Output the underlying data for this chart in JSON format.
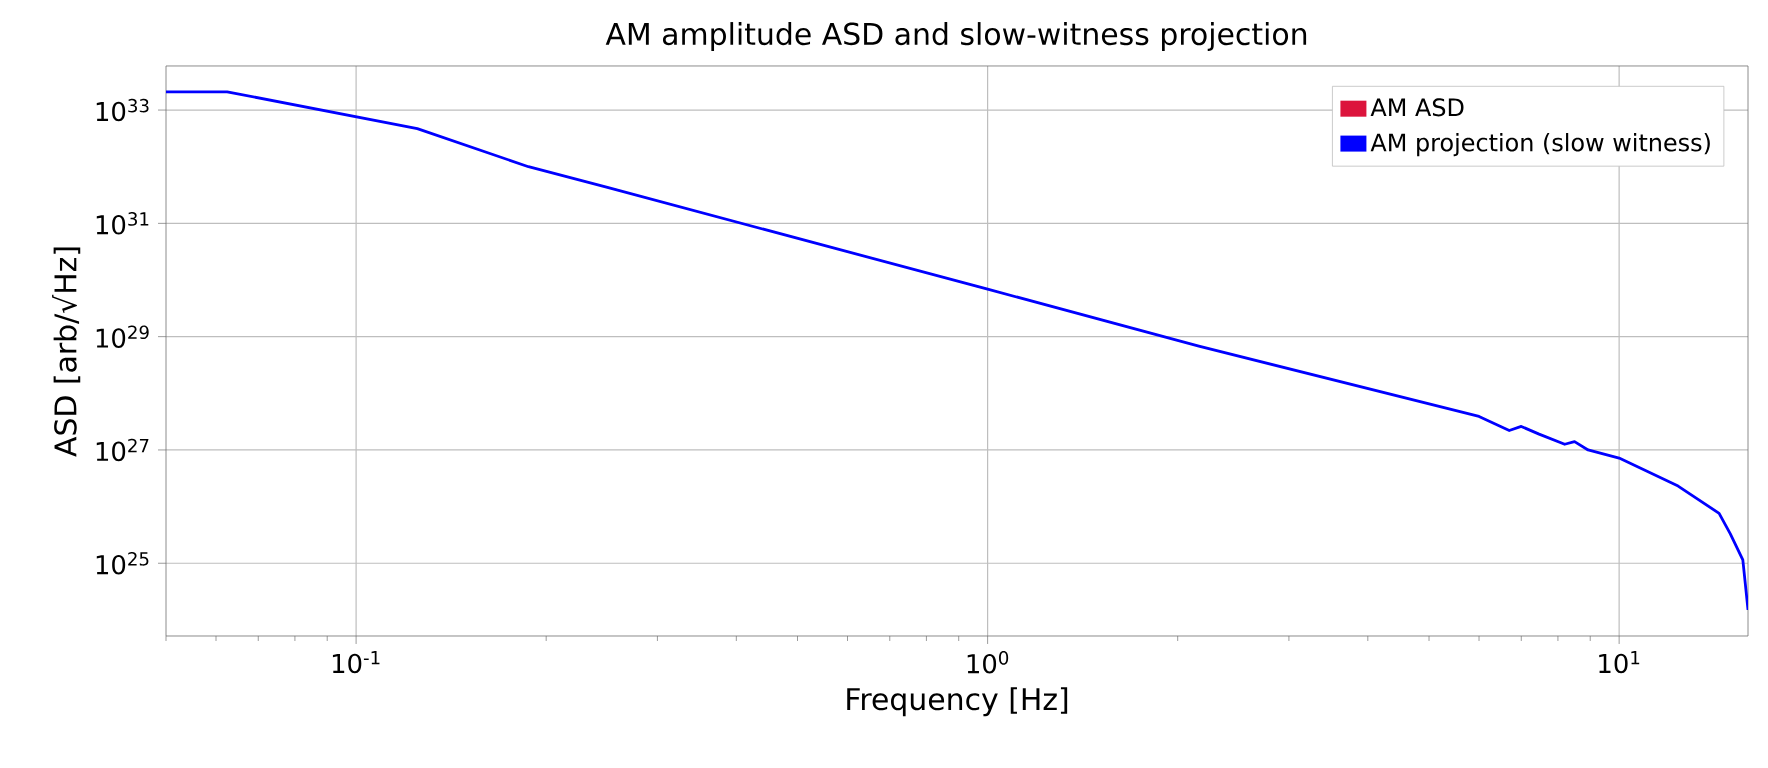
{
  "chart_data": {
    "type": "line",
    "title": "AM amplitude ASD and slow-witness projection",
    "xlabel": "Frequency [Hz]",
    "ylabel": "ASD [arb/√Hz]",
    "x": [
      0.05,
      0.0625,
      0.125,
      0.1875,
      0.25,
      1,
      2.16,
      6.0,
      6.7,
      7.0,
      7.47,
      8.2,
      8.5,
      8.93,
      10,
      12.4,
      14.4,
      15.0,
      15.7,
      16.0
    ],
    "series": [
      {
        "name": "AM ASD",
        "color": "#dc143c",
        "values": [
          null,
          null,
          null,
          null,
          null,
          null,
          null,
          null,
          null,
          null,
          null,
          null,
          null,
          null,
          null,
          null,
          null,
          null,
          null,
          null
        ]
      },
      {
        "name": "AM projection (slow witness)",
        "color": "#0000ff",
        "values": [
          2.1e+33,
          2.1e+33,
          4.7e+32,
          1e+32,
          4.3e+31,
          6.9e+29,
          6.8e+28,
          3.9e+27,
          2.2e+27,
          2.6e+27,
          1.9e+27,
          1.26e+27,
          1.4e+27,
          1e+27,
          7.2e+26,
          2.3e+26,
          7.6e+25,
          3.3e+25,
          1.15e+25,
          1.5e+24
        ]
      }
    ],
    "log": "xy",
    "xlim": [
      0.05,
      16
    ],
    "ylim": [
      5.2e+23,
      6e+33
    ],
    "xticks": [
      {
        "value": 0.1,
        "label": "10$^{-1}$"
      },
      {
        "value": 1,
        "label": "10$^{0}$"
      },
      {
        "value": 10,
        "label": "10$^{1}$"
      }
    ],
    "yticks": [
      {
        "value": 1e+25,
        "label": "10$^{25}$"
      },
      {
        "value": 1e+27,
        "label": "10$^{27}$"
      },
      {
        "value": 1e+29,
        "label": "10$^{29}$"
      },
      {
        "value": 1e+31,
        "label": "10$^{31}$"
      },
      {
        "value": 1e+33,
        "label": "10$^{33}$"
      }
    ],
    "grid": true,
    "legend": "top right"
  }
}
